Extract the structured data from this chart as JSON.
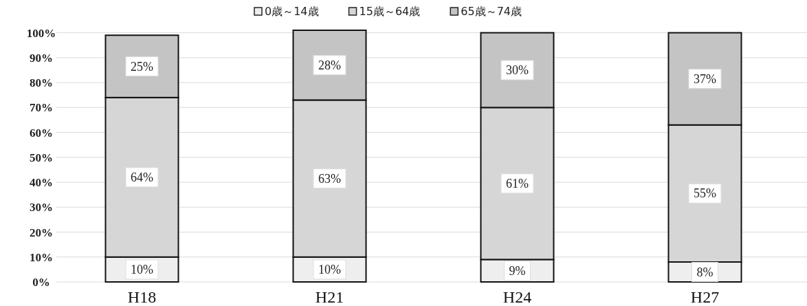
{
  "chart_data": {
    "type": "bar",
    "stacked": true,
    "categories": [
      "H18",
      "H21",
      "H24",
      "H27"
    ],
    "series": [
      {
        "name": "0歳～14歳",
        "color": "#eeeeee",
        "values": [
          10,
          10,
          9,
          8
        ],
        "value_labels": [
          "10%",
          "10%",
          "9%",
          "8%"
        ]
      },
      {
        "name": "15歳～64歳",
        "color": "#d6d6d6",
        "values": [
          64,
          63,
          61,
          55
        ],
        "value_labels": [
          "64%",
          "63%",
          "61%",
          "55%"
        ]
      },
      {
        "name": "65歳～74歳",
        "color": "#c4c4c4",
        "values": [
          25,
          28,
          30,
          37
        ],
        "value_labels": [
          "25%",
          "28%",
          "30%",
          "37%"
        ]
      }
    ],
    "ylim": [
      0,
      101
    ],
    "yticks": [
      {
        "value": 0,
        "label": "0%"
      },
      {
        "value": 10,
        "label": "10%"
      },
      {
        "value": 20,
        "label": "20%"
      },
      {
        "value": 30,
        "label": "30%"
      },
      {
        "value": 40,
        "label": "40%"
      },
      {
        "value": 50,
        "label": "50%"
      },
      {
        "value": 60,
        "label": "60%"
      },
      {
        "value": 70,
        "label": "70%"
      },
      {
        "value": 80,
        "label": "80%"
      },
      {
        "value": 90,
        "label": "90%"
      },
      {
        "value": 100,
        "label": "100%"
      }
    ],
    "grid": "y",
    "legend": "top"
  }
}
